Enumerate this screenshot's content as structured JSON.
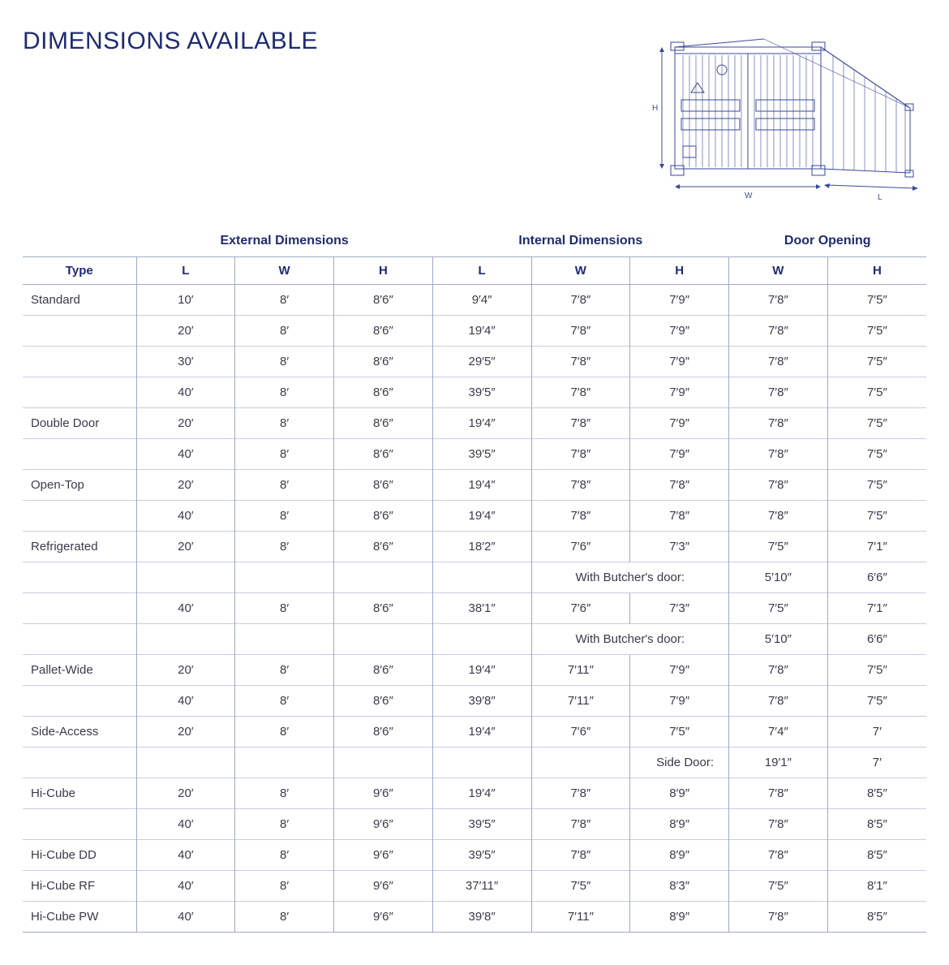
{
  "title": "DIMENSIONS AVAILABLE",
  "diagram": {
    "labels": {
      "h": "H",
      "w": "W",
      "l": "L"
    },
    "stroke": "#3a4a9a"
  },
  "table": {
    "groupHeaders": [
      {
        "label": "",
        "span": 1
      },
      {
        "label": "External Dimensions",
        "span": 3
      },
      {
        "label": "Internal Dimensions",
        "span": 3
      },
      {
        "label": "Door Opening",
        "span": 2
      }
    ],
    "columns": [
      "Type",
      "L",
      "W",
      "H",
      "L",
      "W",
      "H",
      "W",
      "H"
    ],
    "rows": [
      {
        "cells": [
          "Standard",
          "10′",
          "8′",
          "8′6″",
          "9′4″",
          "7′8″",
          "7′9″",
          "7′8″",
          "7′5″"
        ]
      },
      {
        "cells": [
          "",
          "20′",
          "8′",
          "8′6″",
          "19′4″",
          "7′8″",
          "7′9″",
          "7′8″",
          "7′5″"
        ]
      },
      {
        "cells": [
          "",
          "30′",
          "8′",
          "8′6″",
          "29′5″",
          "7′8″",
          "7′9″",
          "7′8″",
          "7′5″"
        ]
      },
      {
        "cells": [
          "",
          "40′",
          "8′",
          "8′6″",
          "39′5″",
          "7′8″",
          "7′9″",
          "7′8″",
          "7′5″"
        ]
      },
      {
        "cells": [
          "Double Door",
          "20′",
          "8′",
          "8′6″",
          "19′4″",
          "7′8″",
          "7′9″",
          "7′8″",
          "7′5″"
        ]
      },
      {
        "cells": [
          "",
          "40′",
          "8′",
          "8′6″",
          "39′5″",
          "7′8″",
          "7′9″",
          "7′8″",
          "7′5″"
        ]
      },
      {
        "cells": [
          "Open-Top",
          "20′",
          "8′",
          "8′6″",
          "19′4″",
          "7′8″",
          "7′8″",
          "7′8″",
          "7′5″"
        ]
      },
      {
        "cells": [
          "",
          "40′",
          "8′",
          "8′6″",
          "19′4″",
          "7′8″",
          "7′8″",
          "7′8″",
          "7′5″"
        ]
      },
      {
        "cells": [
          "Refrigerated",
          "20′",
          "8′",
          "8′6″",
          "18′2″",
          "7′6″",
          "7′3″",
          "7′5″",
          "7′1″"
        ]
      },
      {
        "note": {
          "preBlank": 5,
          "text": "With Butcher's door:",
          "span": 2,
          "after": [
            "5′10″",
            "6′6″"
          ]
        }
      },
      {
        "cells": [
          "",
          "40′",
          "8′",
          "8′6″",
          "38′1″",
          "7′6″",
          "7′3″",
          "7′5″",
          "7′1″"
        ]
      },
      {
        "note": {
          "preBlank": 5,
          "text": "With Butcher's door:",
          "span": 2,
          "after": [
            "5′10″",
            "6′6″"
          ]
        }
      },
      {
        "cells": [
          "Pallet-Wide",
          "20′",
          "8′",
          "8′6″",
          "19′4″",
          "7′11″",
          "7′9″",
          "7′8″",
          "7′5″"
        ]
      },
      {
        "cells": [
          "",
          "40′",
          "8′",
          "8′6″",
          "39′8″",
          "7′11″",
          "7′9″",
          "7′8″",
          "7′5″"
        ]
      },
      {
        "cells": [
          "Side-Access",
          "20′",
          "8′",
          "8′6″",
          "19′4″",
          "7′6″",
          "7′5″",
          "7′4″",
          "7′"
        ]
      },
      {
        "noteRight": {
          "preBlank": 6,
          "text": "Side Door:",
          "after": [
            "19′1″",
            "7′"
          ]
        }
      },
      {
        "cells": [
          "Hi-Cube",
          "20′",
          "8′",
          "9′6″",
          "19′4″",
          "7′8″",
          "8′9″",
          "7′8″",
          "8′5″"
        ]
      },
      {
        "cells": [
          "",
          "40′",
          "8′",
          "9′6″",
          "39′5″",
          "7′8″",
          "8′9″",
          "7′8″",
          "8′5″"
        ]
      },
      {
        "cells": [
          "Hi-Cube DD",
          "40′",
          "8′",
          "9′6″",
          "39′5″",
          "7′8″",
          "8′9″",
          "7′8″",
          "8′5″"
        ]
      },
      {
        "cells": [
          "Hi-Cube RF",
          "40′",
          "8′",
          "9′6″",
          "37′11″",
          "7′5″",
          "8′3″",
          "7′5″",
          "8′1″"
        ]
      },
      {
        "cells": [
          "Hi-Cube PW",
          "40′",
          "8′",
          "9′6″",
          "39′8″",
          "7′11″",
          "8′9″",
          "7′8″",
          "8′5″"
        ]
      }
    ]
  }
}
